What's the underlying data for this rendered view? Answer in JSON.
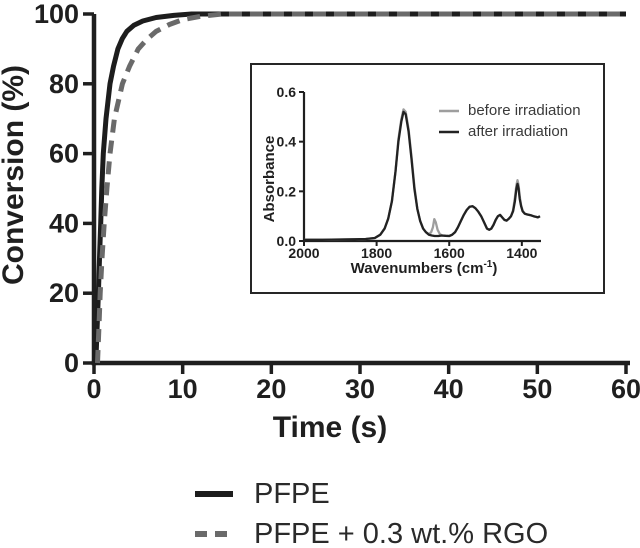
{
  "figure": {
    "background": "#ffffff",
    "text_color": "#1f1f1f"
  },
  "chart_data": [
    {
      "type": "line",
      "role": "main-plot",
      "title": "",
      "xlabel": "Time (s)",
      "ylabel": "Conversion (%)",
      "xlim": [
        0,
        60
      ],
      "ylim": [
        0,
        100
      ],
      "grid": false,
      "legend_position": "below-plot",
      "x_ticks": [
        0,
        10,
        20,
        30,
        40,
        50,
        60
      ],
      "x_tick_labels": [
        "0",
        "10",
        "20",
        "30",
        "40",
        "50",
        "60"
      ],
      "y_ticks": [
        0,
        20,
        40,
        60,
        80,
        100
      ],
      "y_tick_labels": [
        "0",
        "20",
        "40",
        "60",
        "80",
        "100"
      ],
      "series": [
        {
          "name": "PFPE",
          "color": "#1d1d1d",
          "style": "solid",
          "points": [
            [
              0.2,
              0
            ],
            [
              0.35,
              10
            ],
            [
              0.5,
              20
            ],
            [
              0.62,
              30
            ],
            [
              0.75,
              40
            ],
            [
              0.88,
              50
            ],
            [
              1.05,
              60
            ],
            [
              1.35,
              70
            ],
            [
              1.8,
              80
            ],
            [
              2.2,
              85
            ],
            [
              2.7,
              90
            ],
            [
              3.2,
              93
            ],
            [
              3.7,
              95
            ],
            [
              4.5,
              96.8
            ],
            [
              5.5,
              98
            ],
            [
              7,
              99
            ],
            [
              9,
              99.6
            ],
            [
              11,
              100
            ],
            [
              60,
              100
            ]
          ]
        },
        {
          "name": "PFPE + 0.3 wt.% RGO",
          "color": "#6a6a6a",
          "style": "dashed",
          "points": [
            [
              0.4,
              0
            ],
            [
              0.55,
              10
            ],
            [
              0.7,
              20
            ],
            [
              0.9,
              30
            ],
            [
              1.15,
              40
            ],
            [
              1.45,
              50
            ],
            [
              1.8,
              60
            ],
            [
              2.3,
              70
            ],
            [
              3.2,
              80
            ],
            [
              4,
              85
            ],
            [
              5,
              90
            ],
            [
              6,
              92.8
            ],
            [
              7,
              95
            ],
            [
              8.5,
              97
            ],
            [
              10,
              98.4
            ],
            [
              12,
              99.3
            ],
            [
              14.5,
              100
            ],
            [
              60,
              100
            ]
          ]
        }
      ]
    },
    {
      "type": "line",
      "role": "inset-ftir-spectrum",
      "title": "",
      "xlabel": "Wavenumbers (cm⁻¹)",
      "xlabel_pre": "Wavenumbers (cm",
      "xlabel_sup": "-1",
      "xlabel_post": ")",
      "ylabel": "Absorbance",
      "xlim": [
        2000,
        1350
      ],
      "ylim": [
        0,
        0.6
      ],
      "grid": false,
      "legend_position": "top-right-inside",
      "x_ticks": [
        2000,
        1800,
        1600,
        1400
      ],
      "x_tick_labels": [
        "2000",
        "1800",
        "1600",
        "1400"
      ],
      "y_ticks": [
        0,
        0.2,
        0.4,
        0.6
      ],
      "y_tick_labels": [
        "0.0",
        "0.2",
        "0.4",
        "0.6"
      ],
      "series": [
        {
          "name": "before irradiation",
          "color": "#9e9e9e",
          "style": "solid",
          "points": [
            [
              2000,
              0.005
            ],
            [
              1950,
              0.005
            ],
            [
              1900,
              0.006
            ],
            [
              1860,
              0.007
            ],
            [
              1830,
              0.008
            ],
            [
              1805,
              0.012
            ],
            [
              1790,
              0.025
            ],
            [
              1778,
              0.05
            ],
            [
              1768,
              0.09
            ],
            [
              1758,
              0.16
            ],
            [
              1748,
              0.28
            ],
            [
              1740,
              0.41
            ],
            [
              1732,
              0.49
            ],
            [
              1726,
              0.53
            ],
            [
              1720,
              0.52
            ],
            [
              1712,
              0.45
            ],
            [
              1704,
              0.34
            ],
            [
              1696,
              0.22
            ],
            [
              1688,
              0.13
            ],
            [
              1680,
              0.08
            ],
            [
              1672,
              0.05
            ],
            [
              1664,
              0.035
            ],
            [
              1656,
              0.028
            ],
            [
              1650,
              0.035
            ],
            [
              1645,
              0.055
            ],
            [
              1641,
              0.088
            ],
            [
              1637,
              0.075
            ],
            [
              1632,
              0.045
            ],
            [
              1626,
              0.028
            ],
            [
              1620,
              0.022
            ],
            [
              1610,
              0.021
            ],
            [
              1600,
              0.02
            ],
            [
              1592,
              0.025
            ],
            [
              1584,
              0.035
            ],
            [
              1576,
              0.055
            ],
            [
              1568,
              0.08
            ],
            [
              1560,
              0.105
            ],
            [
              1552,
              0.125
            ],
            [
              1544,
              0.138
            ],
            [
              1536,
              0.14
            ],
            [
              1528,
              0.132
            ],
            [
              1520,
              0.118
            ],
            [
              1512,
              0.1
            ],
            [
              1504,
              0.075
            ],
            [
              1496,
              0.05
            ],
            [
              1490,
              0.045
            ],
            [
              1484,
              0.05
            ],
            [
              1478,
              0.065
            ],
            [
              1472,
              0.085
            ],
            [
              1466,
              0.1
            ],
            [
              1460,
              0.105
            ],
            [
              1454,
              0.095
            ],
            [
              1448,
              0.085
            ],
            [
              1442,
              0.082
            ],
            [
              1436,
              0.09
            ],
            [
              1430,
              0.1
            ],
            [
              1424,
              0.125
            ],
            [
              1419,
              0.175
            ],
            [
              1415,
              0.225
            ],
            [
              1412,
              0.245
            ],
            [
              1409,
              0.225
            ],
            [
              1406,
              0.18
            ],
            [
              1402,
              0.145
            ],
            [
              1398,
              0.122
            ],
            [
              1392,
              0.11
            ],
            [
              1386,
              0.107
            ],
            [
              1380,
              0.105
            ],
            [
              1374,
              0.103
            ],
            [
              1368,
              0.1
            ],
            [
              1362,
              0.098
            ],
            [
              1356,
              0.095
            ],
            [
              1350,
              0.1
            ]
          ]
        },
        {
          "name": "after irradiation",
          "color": "#222222",
          "style": "solid",
          "points": [
            [
              2000,
              0.005
            ],
            [
              1950,
              0.005
            ],
            [
              1900,
              0.006
            ],
            [
              1860,
              0.007
            ],
            [
              1830,
              0.008
            ],
            [
              1805,
              0.012
            ],
            [
              1790,
              0.025
            ],
            [
              1778,
              0.05
            ],
            [
              1768,
              0.09
            ],
            [
              1758,
              0.16
            ],
            [
              1748,
              0.28
            ],
            [
              1740,
              0.4
            ],
            [
              1732,
              0.48
            ],
            [
              1726,
              0.52
            ],
            [
              1720,
              0.51
            ],
            [
              1712,
              0.44
            ],
            [
              1704,
              0.33
            ],
            [
              1696,
              0.21
            ],
            [
              1688,
              0.13
            ],
            [
              1680,
              0.08
            ],
            [
              1672,
              0.05
            ],
            [
              1664,
              0.035
            ],
            [
              1656,
              0.025
            ],
            [
              1648,
              0.022
            ],
            [
              1640,
              0.02
            ],
            [
              1630,
              0.02
            ],
            [
              1620,
              0.022
            ],
            [
              1610,
              0.021
            ],
            [
              1600,
              0.02
            ],
            [
              1592,
              0.025
            ],
            [
              1584,
              0.035
            ],
            [
              1576,
              0.055
            ],
            [
              1568,
              0.08
            ],
            [
              1560,
              0.105
            ],
            [
              1552,
              0.125
            ],
            [
              1544,
              0.138
            ],
            [
              1536,
              0.14
            ],
            [
              1528,
              0.132
            ],
            [
              1520,
              0.118
            ],
            [
              1512,
              0.1
            ],
            [
              1504,
              0.075
            ],
            [
              1496,
              0.05
            ],
            [
              1490,
              0.045
            ],
            [
              1484,
              0.05
            ],
            [
              1478,
              0.065
            ],
            [
              1472,
              0.085
            ],
            [
              1466,
              0.1
            ],
            [
              1460,
              0.105
            ],
            [
              1454,
              0.095
            ],
            [
              1448,
              0.085
            ],
            [
              1442,
              0.082
            ],
            [
              1436,
              0.09
            ],
            [
              1430,
              0.1
            ],
            [
              1424,
              0.12
            ],
            [
              1419,
              0.16
            ],
            [
              1415,
              0.21
            ],
            [
              1412,
              0.23
            ],
            [
              1409,
              0.21
            ],
            [
              1406,
              0.17
            ],
            [
              1402,
              0.14
            ],
            [
              1398,
              0.12
            ],
            [
              1392,
              0.11
            ],
            [
              1386,
              0.107
            ],
            [
              1380,
              0.105
            ],
            [
              1374,
              0.103
            ],
            [
              1368,
              0.1
            ],
            [
              1362,
              0.098
            ],
            [
              1356,
              0.095
            ],
            [
              1350,
              0.1
            ]
          ]
        }
      ]
    }
  ]
}
